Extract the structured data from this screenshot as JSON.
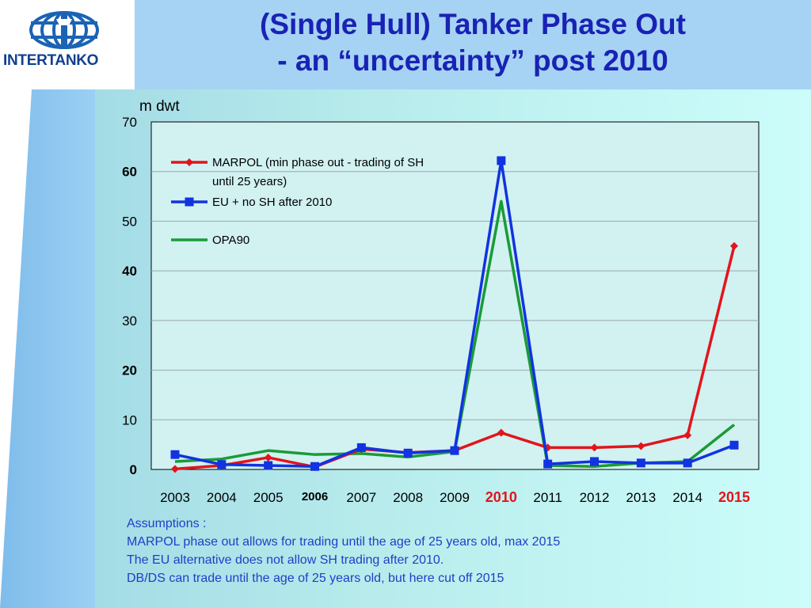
{
  "header": {
    "logo_text": "INTERTANKO",
    "title_line1": "(Single Hull) Tanker Phase Out",
    "title_line2": "- an “uncertainty” post 2010"
  },
  "colors": {
    "title": "#1a22b5",
    "marpol": "#e3141b",
    "eu": "#1133e0",
    "opa90": "#1a9b36",
    "highlight_year": "#e3141b",
    "assumptions_text": "#1e3fc8"
  },
  "chart_data": {
    "type": "line",
    "ylabel": "m dwt",
    "ylim": [
      0,
      70
    ],
    "yticks": [
      {
        "value": 70,
        "label": "70",
        "bold": false
      },
      {
        "value": 60,
        "label": "60",
        "bold": true
      },
      {
        "value": 50,
        "label": "50",
        "bold": false
      },
      {
        "value": 40,
        "label": "40",
        "bold": true
      },
      {
        "value": 30,
        "label": "30",
        "bold": false
      },
      {
        "value": 20,
        "label": "20",
        "bold": true
      },
      {
        "value": 10,
        "label": "10",
        "bold": false
      },
      {
        "value": 0,
        "label": "0",
        "bold": true
      }
    ],
    "categories": [
      "2003",
      "2004",
      "2005",
      "2006",
      "2007",
      "2008",
      "2009",
      "2010",
      "2011",
      "2012",
      "2013",
      "2014",
      "2015"
    ],
    "highlight_categories": [
      "2010",
      "2015"
    ],
    "small_bold_categories": [
      "2006"
    ],
    "grid": true,
    "legend_position": "top-left",
    "series": [
      {
        "name": "MARPOL (min phase out - trading of SH until 25 years)",
        "legend_lines": [
          "MARPOL (min phase out - trading of SH",
          "until 25 years)"
        ],
        "marker": "diamond",
        "values": [
          0.1,
          0.8,
          2.4,
          0.5,
          4.1,
          3.4,
          3.8,
          7.4,
          4.4,
          4.4,
          4.7,
          6.9,
          45
        ]
      },
      {
        "name": "EU + no SH after 2010",
        "legend_lines": [
          "EU + no SH after 2010"
        ],
        "marker": "square",
        "values": [
          3.0,
          1.0,
          0.8,
          0.6,
          4.4,
          3.3,
          3.8,
          62.2,
          1.1,
          1.6,
          1.3,
          1.3,
          4.9
        ]
      },
      {
        "name": "OPA90",
        "legend_lines": [
          "OPA90"
        ],
        "marker": "none",
        "values": [
          1.6,
          2.1,
          3.8,
          3.0,
          3.2,
          2.5,
          3.6,
          54.0,
          0.8,
          0.6,
          1.3,
          1.6,
          9.0
        ]
      }
    ]
  },
  "assumptions": {
    "heading": "Assumptions :",
    "lines": [
      "MARPOL phase out allows for trading until the age of 25 years old, max 2015",
      "The EU alternative does not allow SH trading after 2010.",
      "DB/DS can trade until the age of 25 years old, but here cut off 2015"
    ]
  }
}
